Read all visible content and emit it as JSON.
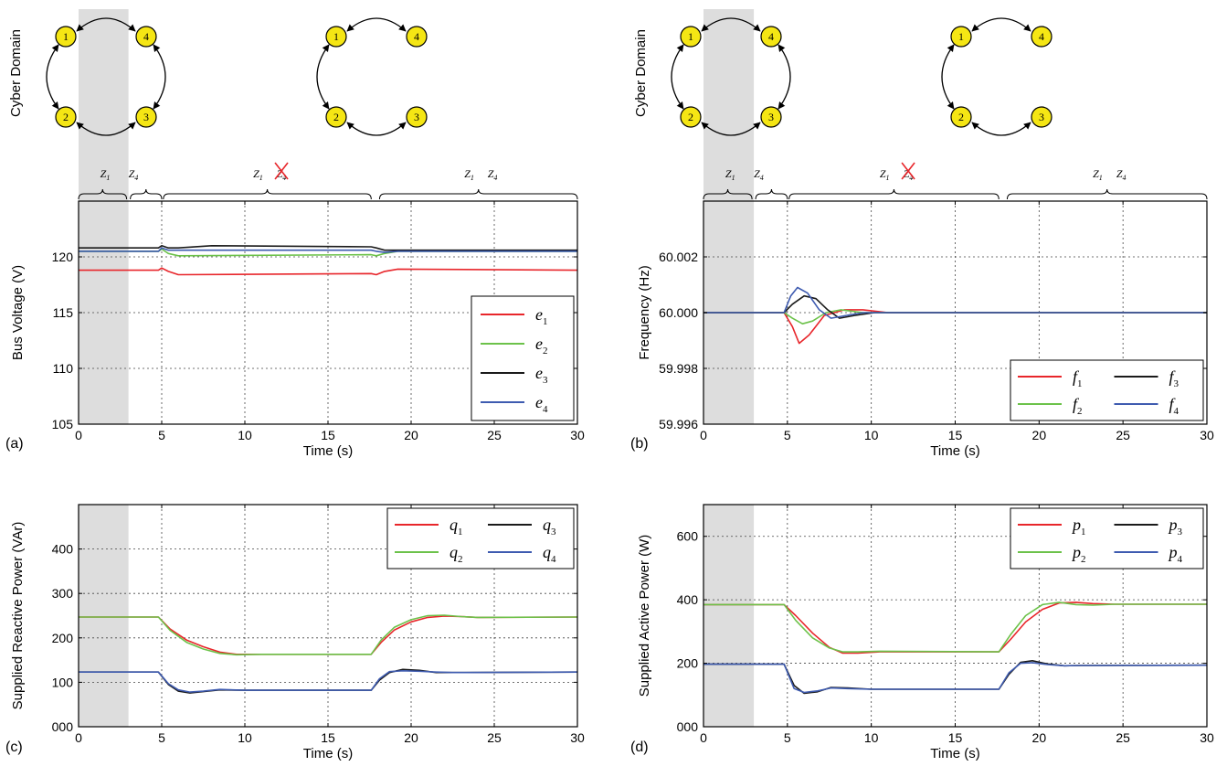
{
  "cyber_label": "Cyber Domain",
  "zones": {
    "z1": "Z",
    "z1_sub": "1",
    "z4": "Z",
    "z4_sub": "4"
  },
  "graph_nodes": [
    "1",
    "2",
    "3",
    "4"
  ],
  "colors": {
    "s1": "#e8262b",
    "s2": "#6cc24a",
    "s3": "#1a1a1a",
    "s4": "#3e5bb0",
    "shade": "#dddddd",
    "node_fill": "#f5e614"
  },
  "chart_data": [
    {
      "panel": "(a)",
      "type": "line",
      "xlabel": "Time (s)",
      "ylabel": "Bus Voltage (V)",
      "xlim": [
        0,
        30
      ],
      "ylim": [
        105,
        125
      ],
      "xticks": [
        "0",
        "5",
        "10",
        "15",
        "20",
        "25",
        "30"
      ],
      "yticks": [
        "105",
        "110",
        "115",
        "120"
      ],
      "grid": true,
      "shaded_interval": [
        0,
        3
      ],
      "legend": "lower-right, 1 column",
      "series": [
        {
          "name": "e",
          "sub": "1",
          "x": [
            0,
            4.8,
            5.0,
            5.4,
            6.0,
            17.6,
            17.9,
            18.4,
            19.2,
            30
          ],
          "y": [
            118.8,
            118.8,
            119.0,
            118.7,
            118.4,
            118.5,
            118.4,
            118.7,
            118.9,
            118.8
          ]
        },
        {
          "name": "e",
          "sub": "2",
          "x": [
            0,
            4.8,
            5.0,
            5.4,
            6.0,
            17.6,
            17.9,
            18.4,
            19.2,
            30
          ],
          "y": [
            120.5,
            120.5,
            120.7,
            120.3,
            120.1,
            120.2,
            120.1,
            120.3,
            120.5,
            120.5
          ]
        },
        {
          "name": "e",
          "sub": "3",
          "x": [
            0,
            4.8,
            5.0,
            5.4,
            6.0,
            8.0,
            17.6,
            17.9,
            18.4,
            19.2,
            30
          ],
          "y": [
            120.8,
            120.8,
            121.0,
            120.8,
            120.8,
            121.0,
            120.9,
            120.8,
            120.6,
            120.6,
            120.6
          ]
        },
        {
          "name": "e",
          "sub": "4",
          "x": [
            0,
            4.8,
            5.0,
            5.4,
            6.0,
            17.6,
            17.9,
            18.4,
            19.2,
            30
          ],
          "y": [
            120.5,
            120.5,
            120.8,
            120.6,
            120.6,
            120.6,
            120.5,
            120.4,
            120.5,
            120.5
          ]
        }
      ]
    },
    {
      "panel": "(b)",
      "type": "line",
      "xlabel": "Time (s)",
      "ylabel": "Frequency (Hz)",
      "xlim": [
        0,
        30
      ],
      "ylim": [
        59.996,
        60.004
      ],
      "xticks": [
        "0",
        "5",
        "10",
        "15",
        "20",
        "25",
        "30"
      ],
      "yticks": [
        "59.996",
        "59.998",
        "60.000",
        "60.002"
      ],
      "grid": true,
      "shaded_interval": [
        0,
        3
      ],
      "legend": "lower-right, 2 columns",
      "series": [
        {
          "name": "f",
          "sub": "1",
          "x": [
            0,
            4.8,
            5.3,
            5.7,
            6.3,
            7.2,
            8.4,
            9.5,
            11,
            30
          ],
          "y": [
            60.0,
            60.0,
            59.9995,
            59.9989,
            59.9992,
            59.9999,
            60.0001,
            60.0001,
            60.0,
            60.0
          ]
        },
        {
          "name": "f",
          "sub": "2",
          "x": [
            0,
            4.8,
            5.3,
            5.9,
            6.5,
            7.3,
            8.2,
            9.5,
            11,
            30
          ],
          "y": [
            60.0,
            60.0,
            59.9998,
            59.9996,
            59.9997,
            60.0,
            60.0001,
            60.0,
            60.0,
            60.0
          ]
        },
        {
          "name": "f",
          "sub": "3",
          "x": [
            0,
            4.8,
            5.3,
            6.0,
            6.7,
            7.4,
            8.1,
            9.0,
            10.2,
            30
          ],
          "y": [
            60.0,
            60.0,
            60.0003,
            60.0006,
            60.0005,
            60.0001,
            59.9998,
            59.9999,
            60.0,
            60.0
          ]
        },
        {
          "name": "f",
          "sub": "4",
          "x": [
            0,
            4.8,
            5.2,
            5.6,
            6.2,
            6.9,
            7.6,
            8.5,
            9.5,
            30
          ],
          "y": [
            60.0,
            60.0,
            60.0006,
            60.0009,
            60.0007,
            60.0001,
            59.9998,
            59.9999,
            60.0,
            60.0
          ]
        }
      ]
    },
    {
      "panel": "(c)",
      "type": "line",
      "xlabel": "Time (s)",
      "ylabel": "Supplied Reactive Power (VAr)",
      "xlim": [
        0,
        30
      ],
      "ylim": [
        0,
        500
      ],
      "xticks": [
        "0",
        "5",
        "10",
        "15",
        "20",
        "25",
        "30"
      ],
      "yticks": [
        "000",
        "100",
        "200",
        "300",
        "400"
      ],
      "grid": true,
      "shaded_interval": [
        0,
        3
      ],
      "legend": "upper-right, 2 columns",
      "series": [
        {
          "name": "q",
          "sub": "1",
          "x": [
            0,
            4.8,
            5.5,
            6.5,
            7.5,
            8.5,
            9.5,
            11,
            17.6,
            18.2,
            19,
            20,
            21,
            22,
            23,
            24,
            30
          ],
          "y": [
            247,
            247,
            220,
            195,
            180,
            168,
            163,
            163,
            163,
            190,
            218,
            236,
            246,
            249,
            248,
            246,
            247
          ]
        },
        {
          "name": "q",
          "sub": "2",
          "x": [
            0,
            4.8,
            5.5,
            6.5,
            7.5,
            8.5,
            9.5,
            11,
            17.6,
            18.2,
            19,
            20,
            21,
            22,
            23,
            24,
            30
          ],
          "y": [
            247,
            247,
            217,
            190,
            175,
            165,
            162,
            163,
            163,
            195,
            224,
            241,
            250,
            251,
            248,
            246,
            247
          ]
        },
        {
          "name": "q",
          "sub": "3",
          "x": [
            0,
            4.8,
            5.4,
            6.0,
            6.7,
            7.5,
            8.5,
            10,
            17.6,
            18.1,
            18.7,
            19.5,
            20.5,
            21.5,
            22.5,
            30
          ],
          "y": [
            123,
            123,
            95,
            80,
            76,
            79,
            83,
            82,
            82,
            105,
            122,
            129,
            127,
            122,
            122,
            123
          ]
        },
        {
          "name": "q",
          "sub": "4",
          "x": [
            0,
            4.8,
            5.4,
            6.0,
            6.7,
            7.5,
            8.5,
            10,
            17.6,
            18.1,
            18.7,
            19.5,
            20.5,
            21.5,
            22.5,
            30
          ],
          "y": [
            123,
            123,
            97,
            83,
            78,
            80,
            84,
            82,
            82,
            108,
            124,
            126,
            125,
            123,
            122,
            123
          ]
        }
      ]
    },
    {
      "panel": "(d)",
      "type": "line",
      "xlabel": "Time (s)",
      "ylabel": "Supplied Active Power (W)",
      "xlim": [
        0,
        30
      ],
      "ylim": [
        0,
        700
      ],
      "xticks": [
        "0",
        "5",
        "10",
        "15",
        "20",
        "25",
        "30"
      ],
      "yticks": [
        "000",
        "200",
        "400",
        "600"
      ],
      "grid": true,
      "shaded_interval": [
        0,
        3
      ],
      "legend": "upper-right, 2 columns",
      "series": [
        {
          "name": "p",
          "sub": "1",
          "x": [
            0,
            4.8,
            5.5,
            6.5,
            7.5,
            8.3,
            9.2,
            10.5,
            17.6,
            18.3,
            19.2,
            20.2,
            21.2,
            22.2,
            23.2,
            24.5,
            30
          ],
          "y": [
            385,
            385,
            350,
            295,
            250,
            232,
            232,
            236,
            236,
            275,
            330,
            370,
            390,
            392,
            388,
            386,
            386
          ]
        },
        {
          "name": "p",
          "sub": "2",
          "x": [
            0,
            4.8,
            5.5,
            6.5,
            7.5,
            8.3,
            9.2,
            10.5,
            17.6,
            18.3,
            19.2,
            20.2,
            21.2,
            22.2,
            23.2,
            24.5,
            30
          ],
          "y": [
            385,
            385,
            335,
            280,
            248,
            236,
            236,
            238,
            236,
            290,
            350,
            385,
            392,
            385,
            383,
            386,
            386
          ]
        },
        {
          "name": "p",
          "sub": "3",
          "x": [
            0,
            4.8,
            5.4,
            6.0,
            6.8,
            7.6,
            8.6,
            10,
            17.6,
            18.2,
            18.9,
            19.6,
            20.5,
            21.5,
            22.5,
            30
          ],
          "y": [
            197,
            197,
            130,
            105,
            110,
            124,
            122,
            118,
            118,
            165,
            203,
            208,
            198,
            192,
            193,
            194
          ]
        },
        {
          "name": "p",
          "sub": "4",
          "x": [
            0,
            4.8,
            5.4,
            6.0,
            6.8,
            7.6,
            8.6,
            10,
            17.6,
            18.2,
            18.9,
            19.6,
            20.5,
            21.5,
            22.5,
            30
          ],
          "y": [
            197,
            197,
            120,
            108,
            113,
            122,
            120,
            118,
            118,
            170,
            200,
            202,
            196,
            192,
            193,
            194
          ]
        }
      ]
    }
  ]
}
